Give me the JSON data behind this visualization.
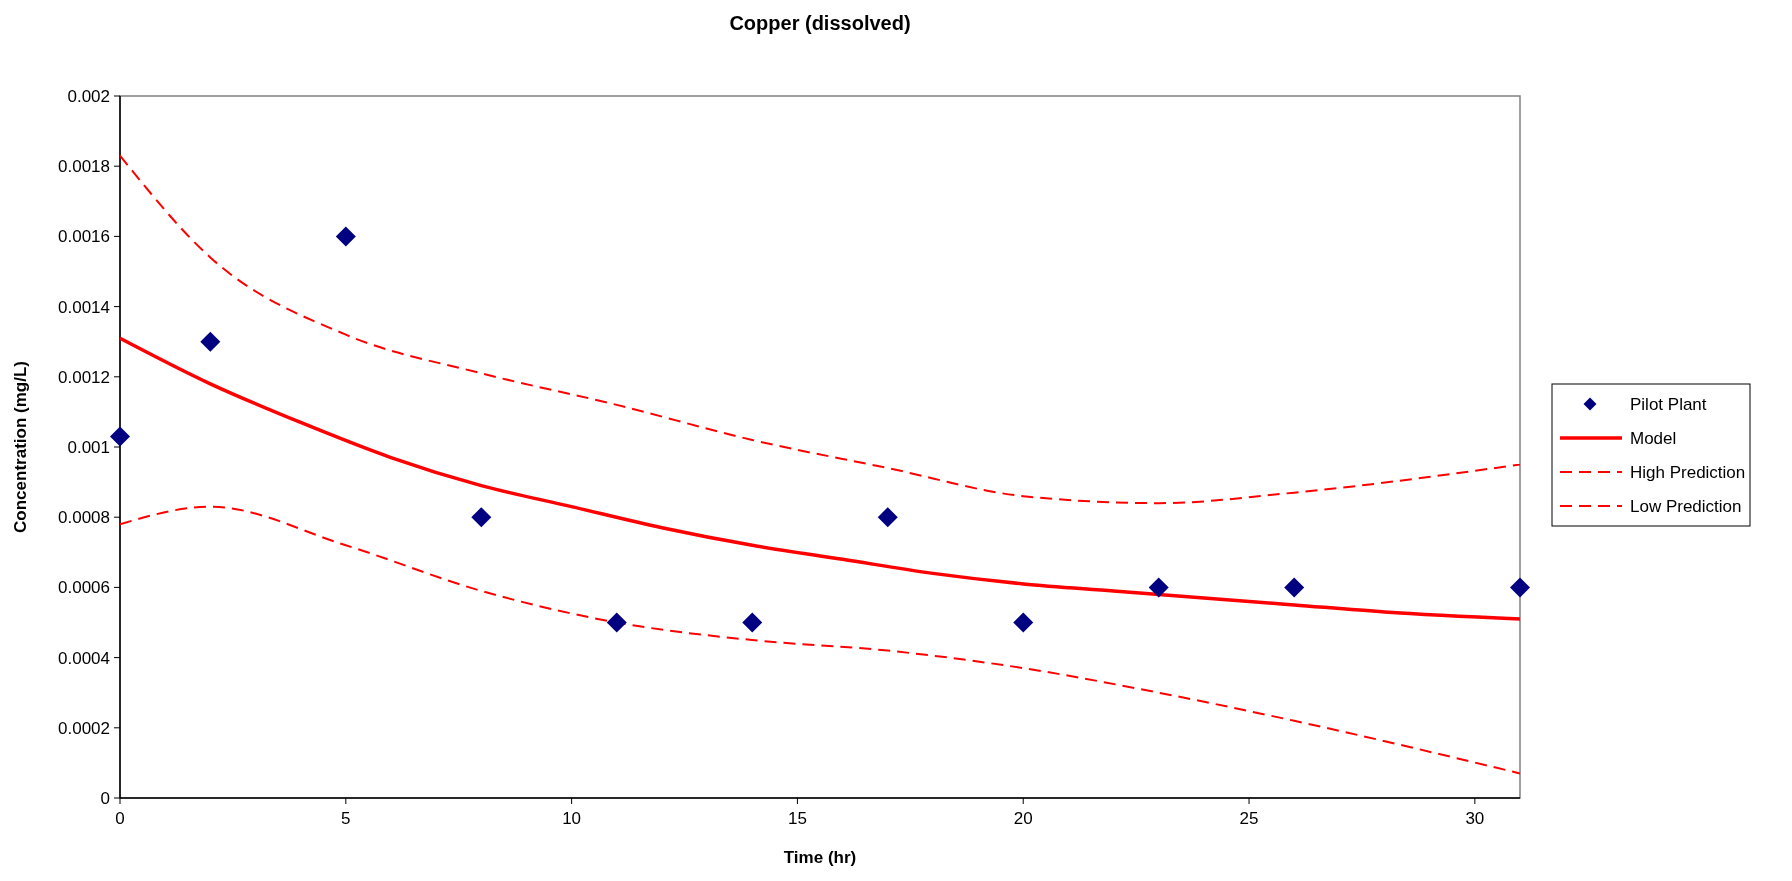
{
  "chart_data": {
    "type": "line",
    "title": "Copper (dissolved)",
    "xlabel": "Time (hr)",
    "ylabel": "Concentration (mg/L)",
    "xlim": [
      0,
      31
    ],
    "xticks": [
      0,
      5,
      10,
      15,
      20,
      25,
      30
    ],
    "ylim": [
      0,
      0.002
    ],
    "yticks": [
      0,
      0.0002,
      0.0004,
      0.0006,
      0.0008,
      0.001,
      0.0012,
      0.0014,
      0.0016,
      0.0018,
      0.002
    ],
    "grid": false,
    "legend": "right",
    "series": [
      {
        "name": "Pilot Plant",
        "type": "scatter",
        "marker": "diamond",
        "color": "#000080",
        "x": [
          0,
          2,
          5,
          8,
          11,
          14,
          17,
          20,
          23,
          26,
          31
        ],
        "values": [
          0.00103,
          0.0013,
          0.0016,
          0.0008,
          0.0005,
          0.0005,
          0.0008,
          0.0005,
          0.0006,
          0.0006,
          0.0006
        ]
      },
      {
        "name": "Model",
        "line_style": "solid",
        "color": "#ff0000",
        "x": [
          0,
          2,
          4,
          6,
          8,
          10,
          12,
          14,
          16,
          18,
          20,
          22,
          24,
          26,
          28,
          31
        ],
        "values": [
          0.00131,
          0.00118,
          0.00107,
          0.00097,
          0.00089,
          0.00083,
          0.00077,
          0.00072,
          0.00068,
          0.00064,
          0.00061,
          0.00059,
          0.00057,
          0.00055,
          0.00053,
          0.00051
        ]
      },
      {
        "name": "High Prediction",
        "line_style": "dashed",
        "color": "#ff0000",
        "x": [
          0,
          2,
          5,
          8,
          11,
          14,
          17,
          20,
          23,
          26,
          31
        ],
        "values": [
          0.00183,
          0.00154,
          0.00132,
          0.00121,
          0.00112,
          0.00102,
          0.00094,
          0.00086,
          0.00084,
          0.00087,
          0.00095
        ]
      },
      {
        "name": "Low Prediction",
        "line_style": "dashed",
        "color": "#ff0000",
        "x": [
          0,
          2,
          5,
          8,
          11,
          14,
          17,
          20,
          23,
          26,
          31
        ],
        "values": [
          0.00078,
          0.00083,
          0.00072,
          0.00059,
          0.0005,
          0.00045,
          0.00042,
          0.00037,
          0.0003,
          0.00022,
          7e-05
        ]
      }
    ]
  }
}
